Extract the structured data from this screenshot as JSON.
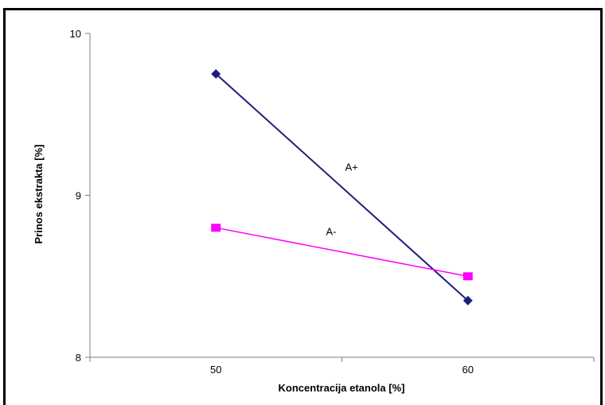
{
  "chart_data": {
    "type": "line",
    "title": "",
    "xlabel": "Koncentracija etanola [%]",
    "ylabel": "Prinos ekstrakta [%]",
    "categories": [
      "50",
      "60"
    ],
    "x": [
      50,
      60
    ],
    "xlim": [
      45,
      65
    ],
    "ylim": [
      8,
      10
    ],
    "yticks": [
      "8",
      "9",
      "10"
    ],
    "grid": false,
    "legend": "none",
    "series": [
      {
        "name": "A+",
        "values": [
          9.75,
          8.35
        ],
        "color": "#1f1f7a",
        "marker": "diamond"
      },
      {
        "name": "A-",
        "values": [
          8.8,
          8.5
        ],
        "color": "#ff00ff",
        "marker": "square"
      }
    ]
  }
}
